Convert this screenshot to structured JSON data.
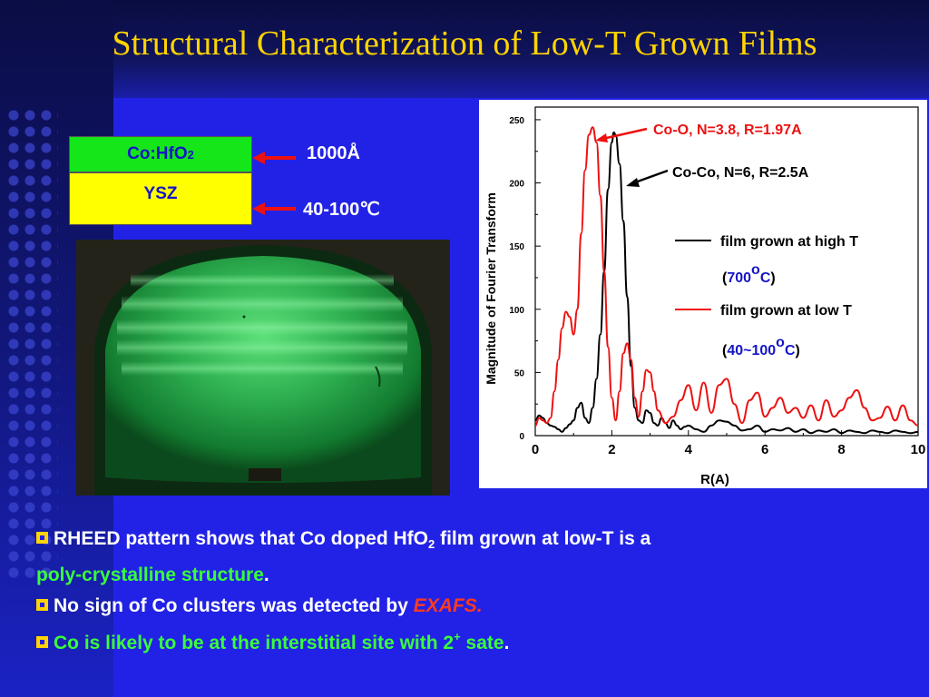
{
  "title": "Structural Characterization of Low-T Grown Films",
  "layers": {
    "top_label": "Co:HfO",
    "top_sub": "2",
    "bottom_label": "YSZ",
    "thickness": "1000Å",
    "temperature": "40-100℃"
  },
  "bullets": [
    {
      "pre": "RHEED pattern shows that Co doped HfO",
      "sub": "2",
      "post": " film grown at low-T is a",
      "line2": "poly-crystalline structure",
      "line2_end": "."
    },
    {
      "pre": "No sign of Co clusters was detected by ",
      "em": "EXAFS."
    },
    {
      "text": "Co is likely to be at the interstitial site with 2",
      "sup": "+",
      "post": " sate",
      "end": "."
    }
  ],
  "colors": {
    "background": "#2222e6",
    "title": "#ffd400",
    "high_t": "#000000",
    "low_t": "#ee1111",
    "green_text": "#39ff39"
  },
  "chart_data": {
    "type": "line",
    "xlabel": "R(A)",
    "ylabel": "Magnitude of Fourier Transform",
    "xlim": [
      0,
      10
    ],
    "ylim": [
      0,
      260
    ],
    "xticks": [
      0,
      2,
      4,
      6,
      8,
      10
    ],
    "yticks": [
      0,
      50,
      100,
      150,
      200,
      250
    ],
    "series": [
      {
        "name": "film grown at high T",
        "color": "#000000",
        "x": [
          0,
          0.1,
          0.2,
          0.3,
          0.4,
          0.5,
          0.6,
          0.7,
          0.8,
          0.9,
          1.0,
          1.1,
          1.2,
          1.3,
          1.4,
          1.5,
          1.6,
          1.7,
          1.8,
          1.9,
          2.0,
          2.05,
          2.1,
          2.2,
          2.3,
          2.4,
          2.5,
          2.6,
          2.7,
          2.8,
          2.9,
          3.0,
          3.1,
          3.2,
          3.3,
          3.4,
          3.5,
          3.6,
          3.7,
          3.8,
          3.9,
          4.0,
          4.2,
          4.4,
          4.6,
          4.8,
          5.0,
          5.2,
          5.4,
          5.6,
          5.8,
          6.0,
          6.2,
          6.4,
          6.6,
          6.8,
          7.0,
          7.2,
          7.4,
          7.6,
          7.8,
          8.0,
          8.2,
          8.4,
          8.6,
          8.8,
          9.0,
          9.2,
          9.4,
          9.6,
          9.8,
          10.0
        ],
        "y": [
          12,
          16,
          14,
          10,
          8,
          7,
          5,
          3,
          6,
          9,
          12,
          22,
          26,
          14,
          10,
          22,
          45,
          80,
          130,
          195,
          232,
          240,
          238,
          215,
          170,
          110,
          55,
          22,
          12,
          10,
          20,
          18,
          10,
          8,
          14,
          10,
          6,
          12,
          8,
          5,
          7,
          8,
          5,
          3,
          8,
          12,
          11,
          8,
          4,
          5,
          8,
          3,
          5,
          4,
          6,
          3,
          5,
          2,
          4,
          3,
          5,
          2,
          4,
          3,
          2,
          4,
          3,
          2,
          4,
          3,
          2,
          3
        ]
      },
      {
        "name": "film grown at low T",
        "color": "#ee1111",
        "x": [
          0,
          0.1,
          0.2,
          0.3,
          0.4,
          0.5,
          0.6,
          0.7,
          0.8,
          0.9,
          1.0,
          1.1,
          1.2,
          1.3,
          1.4,
          1.5,
          1.6,
          1.7,
          1.8,
          1.9,
          2.0,
          2.1,
          2.2,
          2.3,
          2.4,
          2.5,
          2.6,
          2.7,
          2.8,
          2.9,
          3.0,
          3.1,
          3.2,
          3.4,
          3.6,
          3.8,
          4.0,
          4.2,
          4.4,
          4.6,
          4.8,
          5.0,
          5.2,
          5.4,
          5.6,
          5.8,
          6.0,
          6.2,
          6.4,
          6.6,
          6.8,
          7.0,
          7.2,
          7.4,
          7.6,
          7.8,
          8.0,
          8.2,
          8.4,
          8.6,
          8.8,
          9.0,
          9.2,
          9.4,
          9.6,
          9.8,
          10.0
        ],
        "y": [
          8,
          14,
          12,
          10,
          14,
          35,
          60,
          85,
          98,
          94,
          80,
          100,
          160,
          210,
          238,
          244,
          232,
          190,
          130,
          70,
          30,
          12,
          35,
          65,
          73,
          60,
          30,
          15,
          35,
          52,
          50,
          35,
          20,
          10,
          15,
          28,
          40,
          20,
          42,
          18,
          40,
          45,
          25,
          10,
          28,
          34,
          15,
          22,
          30,
          18,
          22,
          14,
          24,
          12,
          28,
          15,
          20,
          30,
          36,
          22,
          12,
          14,
          23,
          12,
          24,
          12,
          8
        ]
      }
    ],
    "annotations": [
      {
        "text": "Co-O, N=3.8, R=1.97A",
        "color": "#ee1111"
      },
      {
        "text": "Co-Co, N=6, R=2.5A",
        "color": "#000000"
      }
    ],
    "legend": [
      {
        "label": "film grown at high T",
        "temp_pre": "(",
        "temp": "700",
        "temp_sup": "o",
        "temp_post": "C)",
        "color": "#000000"
      },
      {
        "label": "film grown at low T",
        "temp_pre": "(",
        "temp": "40~100",
        "temp_sup": "o",
        "temp_post": "C)",
        "color": "#ee1111"
      }
    ],
    "legend_position": "right"
  }
}
